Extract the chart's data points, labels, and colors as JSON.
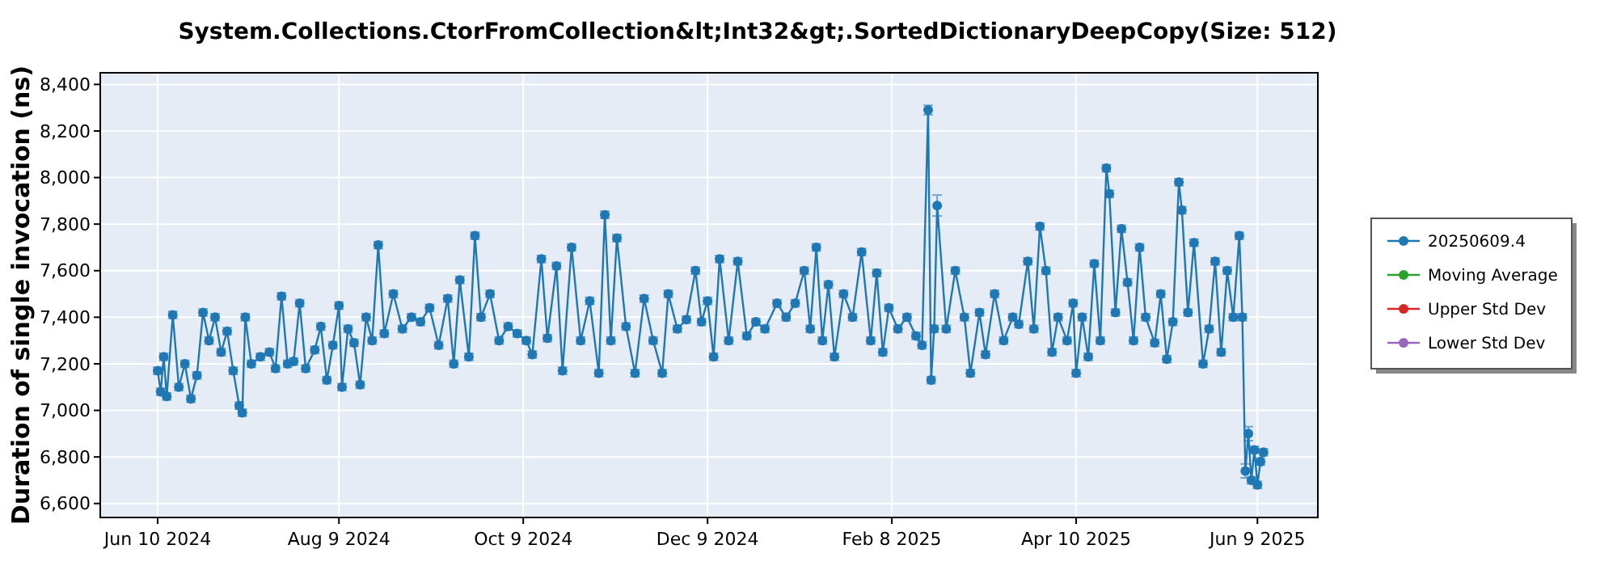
{
  "chart_data": {
    "type": "line",
    "title": "System.Collections.CtorFromCollection&lt;Int32&gt;.SortedDictionaryDeepCopy(Size: 512)",
    "ylabel": "Duration of single invocation (ns)",
    "xlim": [
      "2024-05-22",
      "2025-06-29"
    ],
    "ylim": [
      6540,
      8450
    ],
    "xticks": [
      {
        "value": "2024-06-10",
        "label": "Jun 10 2024"
      },
      {
        "value": "2024-08-09",
        "label": "Aug 9 2024"
      },
      {
        "value": "2024-10-09",
        "label": "Oct 9 2024"
      },
      {
        "value": "2024-12-09",
        "label": "Dec 9 2024"
      },
      {
        "value": "2025-02-08",
        "label": "Feb 8 2025"
      },
      {
        "value": "2025-04-10",
        "label": "Apr 10 2025"
      },
      {
        "value": "2025-06-09",
        "label": "Jun 9 2025"
      }
    ],
    "yticks": [
      {
        "value": 6600,
        "label": "6,600"
      },
      {
        "value": 6800,
        "label": "6,800"
      },
      {
        "value": 7000,
        "label": "7,000"
      },
      {
        "value": 7200,
        "label": "7,200"
      },
      {
        "value": 7400,
        "label": "7,400"
      },
      {
        "value": 7600,
        "label": "7,600"
      },
      {
        "value": 7800,
        "label": "7,800"
      },
      {
        "value": 8000,
        "label": "8,000"
      },
      {
        "value": 8200,
        "label": "8,200"
      },
      {
        "value": 8400,
        "label": "8,400"
      }
    ],
    "grid": true,
    "legend": "right",
    "marker": "circle",
    "line_style": "solid",
    "series": [
      {
        "name": "20250609.4",
        "color": "#1f77b4",
        "x": [
          "2024-06-10",
          "2024-06-11",
          "2024-06-12",
          "2024-06-13",
          "2024-06-15",
          "2024-06-17",
          "2024-06-19",
          "2024-06-21",
          "2024-06-23",
          "2024-06-25",
          "2024-06-27",
          "2024-06-29",
          "2024-07-01",
          "2024-07-03",
          "2024-07-05",
          "2024-07-07",
          "2024-07-08",
          "2024-07-09",
          "2024-07-11",
          "2024-07-14",
          "2024-07-17",
          "2024-07-19",
          "2024-07-21",
          "2024-07-23",
          "2024-07-25",
          "2024-07-27",
          "2024-07-29",
          "2024-08-01",
          "2024-08-03",
          "2024-08-05",
          "2024-08-07",
          "2024-08-09",
          "2024-08-10",
          "2024-08-12",
          "2024-08-14",
          "2024-08-16",
          "2024-08-18",
          "2024-08-20",
          "2024-08-22",
          "2024-08-24",
          "2024-08-27",
          "2024-08-30",
          "2024-09-02",
          "2024-09-05",
          "2024-09-08",
          "2024-09-11",
          "2024-09-14",
          "2024-09-16",
          "2024-09-18",
          "2024-09-21",
          "2024-09-23",
          "2024-09-25",
          "2024-09-28",
          "2024-10-01",
          "2024-10-04",
          "2024-10-07",
          "2024-10-10",
          "2024-10-12",
          "2024-10-15",
          "2024-10-17",
          "2024-10-20",
          "2024-10-22",
          "2024-10-25",
          "2024-10-28",
          "2024-10-31",
          "2024-11-03",
          "2024-11-05",
          "2024-11-07",
          "2024-11-09",
          "2024-11-12",
          "2024-11-15",
          "2024-11-18",
          "2024-11-21",
          "2024-11-24",
          "2024-11-26",
          "2024-11-29",
          "2024-12-02",
          "2024-12-05",
          "2024-12-07",
          "2024-12-09",
          "2024-12-11",
          "2024-12-13",
          "2024-12-16",
          "2024-12-19",
          "2024-12-22",
          "2024-12-25",
          "2024-12-28",
          "2025-01-01",
          "2025-01-04",
          "2025-01-07",
          "2025-01-10",
          "2025-01-12",
          "2025-01-14",
          "2025-01-16",
          "2025-01-18",
          "2025-01-20",
          "2025-01-23",
          "2025-01-26",
          "2025-01-29",
          "2025-02-01",
          "2025-02-03",
          "2025-02-05",
          "2025-02-07",
          "2025-02-10",
          "2025-02-13",
          "2025-02-16",
          "2025-02-18",
          "2025-02-20",
          "2025-02-21",
          "2025-02-22",
          "2025-02-23",
          "2025-02-26",
          "2025-03-01",
          "2025-03-04",
          "2025-03-06",
          "2025-03-09",
          "2025-03-11",
          "2025-03-14",
          "2025-03-17",
          "2025-03-20",
          "2025-03-22",
          "2025-03-25",
          "2025-03-27",
          "2025-03-29",
          "2025-03-31",
          "2025-04-02",
          "2025-04-04",
          "2025-04-07",
          "2025-04-09",
          "2025-04-10",
          "2025-04-12",
          "2025-04-14",
          "2025-04-16",
          "2025-04-18",
          "2025-04-20",
          "2025-04-21",
          "2025-04-23",
          "2025-04-25",
          "2025-04-27",
          "2025-04-29",
          "2025-05-01",
          "2025-05-03",
          "2025-05-06",
          "2025-05-08",
          "2025-05-10",
          "2025-05-12",
          "2025-05-14",
          "2025-05-15",
          "2025-05-17",
          "2025-05-19",
          "2025-05-22",
          "2025-05-24",
          "2025-05-26",
          "2025-05-28",
          "2025-05-30",
          "2025-06-01",
          "2025-06-03",
          "2025-06-04",
          "2025-06-05",
          "2025-06-06",
          "2025-06-07",
          "2025-06-08",
          "2025-06-09",
          "2025-06-10",
          "2025-06-11"
        ],
        "values": [
          7170,
          7080,
          7230,
          7060,
          7410,
          7100,
          7200,
          7050,
          7150,
          7420,
          7300,
          7400,
          7250,
          7340,
          7170,
          7020,
          6990,
          7400,
          7200,
          7230,
          7250,
          7180,
          7490,
          7200,
          7210,
          7460,
          7180,
          7260,
          7360,
          7130,
          7280,
          7450,
          7100,
          7350,
          7290,
          7110,
          7400,
          7300,
          7710,
          7330,
          7500,
          7350,
          7400,
          7380,
          7440,
          7280,
          7480,
          7200,
          7560,
          7230,
          7750,
          7400,
          7500,
          7300,
          7360,
          7330,
          7300,
          7240,
          7650,
          7310,
          7620,
          7170,
          7700,
          7300,
          7470,
          7160,
          7840,
          7300,
          7740,
          7360,
          7160,
          7480,
          7300,
          7160,
          7500,
          7350,
          7390,
          7600,
          7380,
          7470,
          7230,
          7650,
          7300,
          7640,
          7320,
          7380,
          7350,
          7460,
          7400,
          7460,
          7600,
          7350,
          7700,
          7300,
          7540,
          7230,
          7500,
          7400,
          7680,
          7300,
          7590,
          7250,
          7440,
          7350,
          7400,
          7320,
          7280,
          8290,
          7130,
          7350,
          7880,
          7350,
          7600,
          7400,
          7160,
          7420,
          7240,
          7500,
          7300,
          7400,
          7370,
          7640,
          7350,
          7790,
          7600,
          7250,
          7400,
          7300,
          7460,
          7160,
          7400,
          7230,
          7630,
          7300,
          8040,
          7930,
          7420,
          7780,
          7550,
          7300,
          7700,
          7400,
          7290,
          7500,
          7220,
          7380,
          7980,
          7860,
          7420,
          7720,
          7200,
          7350,
          7640,
          7250,
          7600,
          7400,
          7750,
          7400,
          6740,
          6900,
          6700,
          6830,
          6680,
          6780,
          6820
        ],
        "errors": [
          15,
          15,
          15,
          15,
          15,
          15,
          15,
          15,
          15,
          15,
          15,
          15,
          15,
          15,
          15,
          15,
          15,
          15,
          15,
          15,
          15,
          15,
          15,
          15,
          15,
          15,
          15,
          15,
          15,
          15,
          15,
          15,
          15,
          15,
          15,
          15,
          15,
          15,
          15,
          15,
          15,
          15,
          15,
          15,
          15,
          15,
          15,
          15,
          15,
          15,
          15,
          15,
          15,
          15,
          15,
          15,
          15,
          15,
          15,
          15,
          15,
          15,
          15,
          15,
          15,
          15,
          15,
          15,
          15,
          15,
          15,
          15,
          15,
          15,
          15,
          15,
          15,
          15,
          15,
          15,
          15,
          15,
          15,
          15,
          15,
          15,
          15,
          15,
          15,
          15,
          15,
          15,
          15,
          15,
          15,
          15,
          15,
          15,
          15,
          15,
          15,
          15,
          15,
          15,
          15,
          15,
          15,
          20,
          15,
          15,
          45,
          15,
          15,
          15,
          15,
          15,
          15,
          15,
          15,
          15,
          15,
          15,
          15,
          15,
          15,
          15,
          15,
          15,
          15,
          15,
          15,
          15,
          15,
          15,
          15,
          15,
          15,
          15,
          15,
          15,
          15,
          15,
          15,
          15,
          15,
          15,
          15,
          15,
          15,
          15,
          15,
          15,
          15,
          15,
          15,
          15,
          15,
          15,
          30,
          30,
          15,
          15,
          15,
          15,
          15
        ]
      },
      {
        "name": "Moving Average",
        "color": "#2ca02c"
      },
      {
        "name": "Upper Std Dev",
        "color": "#d62728"
      },
      {
        "name": "Lower Std Dev",
        "color": "#9467bd"
      }
    ]
  }
}
